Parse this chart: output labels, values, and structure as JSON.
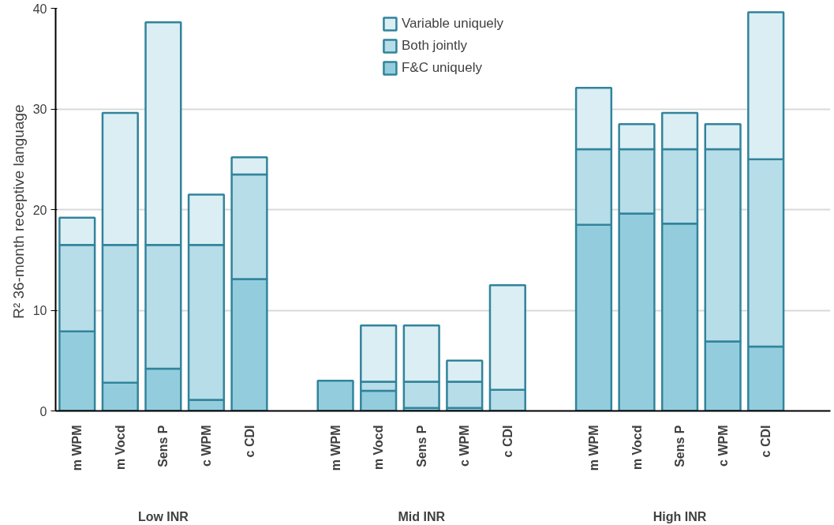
{
  "chart_data": {
    "type": "bar",
    "stacked": true,
    "ylabel": "R² 36-month receptive  language",
    "categories": [
      "m WPM",
      "m Vocd",
      "Sens P",
      "c WPM",
      "c CDI",
      "m WPM",
      "m Vocd",
      "Sens P",
      "c WPM",
      "c CDI",
      "m WPM",
      "m Vocd",
      "Sens P",
      "c WPM",
      "c CDI"
    ],
    "series": [
      {
        "name": "F&C uniquely",
        "color": "#93cddd",
        "values": [
          7.9,
          2.8,
          4.2,
          1.1,
          13.1,
          3.0,
          2.0,
          0.3,
          0.3,
          null,
          18.5,
          19.6,
          18.6,
          6.9,
          6.4
        ]
      },
      {
        "name": "Both jointly",
        "color": "#b7dde8",
        "values": [
          8.6,
          13.7,
          12.3,
          15.4,
          10.4,
          null,
          0.9,
          2.6,
          2.6,
          2.1,
          7.5,
          6.4,
          7.4,
          19.1,
          18.6
        ]
      },
      {
        "name": "Variable uniquely",
        "color": "#dbeef4",
        "values": [
          2.7,
          13.1,
          22.1,
          5.0,
          1.7,
          null,
          5.6,
          5.6,
          2.1,
          10.4,
          6.1,
          2.5,
          3.6,
          2.5,
          14.6
        ]
      }
    ],
    "annotations": [
      "Low INR",
      "Mid INR",
      "High INR"
    ],
    "ylim": [
      0,
      40
    ],
    "yticks": [
      0,
      10,
      20,
      30,
      40
    ],
    "grid": "y",
    "legend": "top"
  }
}
